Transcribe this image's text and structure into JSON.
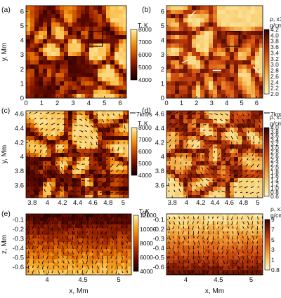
{
  "figure": {
    "panels": [
      {
        "id": "a",
        "label": "(a)",
        "kind": "temperature",
        "xticks": [
          "0",
          "1",
          "2",
          "3",
          "4",
          "5",
          "6"
        ],
        "yticks": [
          "0",
          "1",
          "2",
          "3",
          "4",
          "5",
          "6"
        ],
        "ylabel": "y, Mm",
        "xlabel": "",
        "colorbar": {
          "title": "T, K",
          "title2": "",
          "ticks": [
            "8000",
            "7000",
            "6000",
            "5000",
            "4000"
          ]
        }
      },
      {
        "id": "b",
        "label": "(b)",
        "kind": "density",
        "xticks": [
          "0",
          "1",
          "2",
          "3",
          "4",
          "5",
          "6"
        ],
        "yticks": [
          "0",
          "1",
          "2",
          "3",
          "4",
          "5",
          "6"
        ],
        "ylabel": "",
        "xlabel": "",
        "colorbar": {
          "title": "ρ, x10",
          "sup": "7",
          "title2": "g/cm³",
          "ticks": [
            "4.2",
            "4.0",
            "3.8",
            "3.6",
            "3.4",
            "3.2",
            "3.0",
            "2.8",
            "2.6",
            "2.4",
            "2.2",
            "2.0"
          ]
        }
      },
      {
        "id": "c",
        "label": "(c)",
        "kind": "temperature",
        "xticks": [
          "3.8",
          "4",
          "4.2",
          "4.4",
          "4.6",
          "4.8",
          "5"
        ],
        "yticks": [
          "3.6",
          "3.8",
          "4",
          "4.2",
          "4.4",
          "4.6"
        ],
        "ylabel": "y, Mm",
        "xlabel": "",
        "velocity_scale": "7km/s",
        "colorbar": {
          "title": "T, K",
          "title2": "",
          "ticks": [
            "8000",
            "7000",
            "6000",
            "5000",
            "4000"
          ]
        }
      },
      {
        "id": "d",
        "label": "(d)",
        "kind": "density",
        "xticks": [
          "3.8",
          "4",
          "4.2",
          "4.4",
          "4.6",
          "4.8",
          "5"
        ],
        "yticks": [
          "3.6",
          "3.8",
          "4",
          "4.2",
          "4.4",
          "4.6"
        ],
        "ylabel": "",
        "xlabel": "",
        "velocity_scale": "7km/s",
        "colorbar": {
          "title": "ρ, x10",
          "sup": "7",
          "title2": "g/cm³",
          "ticks": [
            "4.0",
            "3.8",
            "3.6",
            "3.4",
            "3.2",
            "3.0",
            "2.8",
            "2.6",
            "2.4",
            "2.2",
            "2.0",
            "1.8",
            "1.6",
            "1.4",
            "1.2",
            "1.0",
            "0.8",
            "0.6"
          ]
        }
      },
      {
        "id": "e",
        "label": "(e)",
        "kind": "temperature",
        "xticks": [
          "4",
          "4.5",
          "5"
        ],
        "yticks": [
          "-0.1",
          "-0.2",
          "-0.3",
          "-0.4",
          "-0.5",
          "-0.6"
        ],
        "ylabel": "z, Mm",
        "xlabel": "x, Mm",
        "colorbar": {
          "title": "T, K",
          "title2": "",
          "ticks": [
            "12000",
            "10000",
            "8000",
            "6000",
            "4000"
          ]
        }
      },
      {
        "id": "f",
        "label": "(f)",
        "kind": "density",
        "xticks": [
          "4",
          "4.5",
          "5"
        ],
        "yticks": [
          "-0.1",
          "-0.2",
          "-0.3",
          "-0.4",
          "-0.5",
          "-0.6"
        ],
        "ylabel": "",
        "xlabel": "x, Mm",
        "colorbar": {
          "title": "ρ, x10",
          "sup": "7",
          "title2": "g/cm³",
          "ticks": [
            "9",
            "7",
            "5",
            "3",
            "1",
            "0.8"
          ]
        }
      }
    ]
  },
  "colors": {
    "temperature": [
      "#150000",
      "#5a0800",
      "#a52a00",
      "#e06a00",
      "#f8b030",
      "#fff0b0"
    ],
    "density": [
      "#fff6c8",
      "#f8cf70",
      "#ee8f2a",
      "#d14e10",
      "#8a1e04",
      "#2a0200"
    ]
  }
}
